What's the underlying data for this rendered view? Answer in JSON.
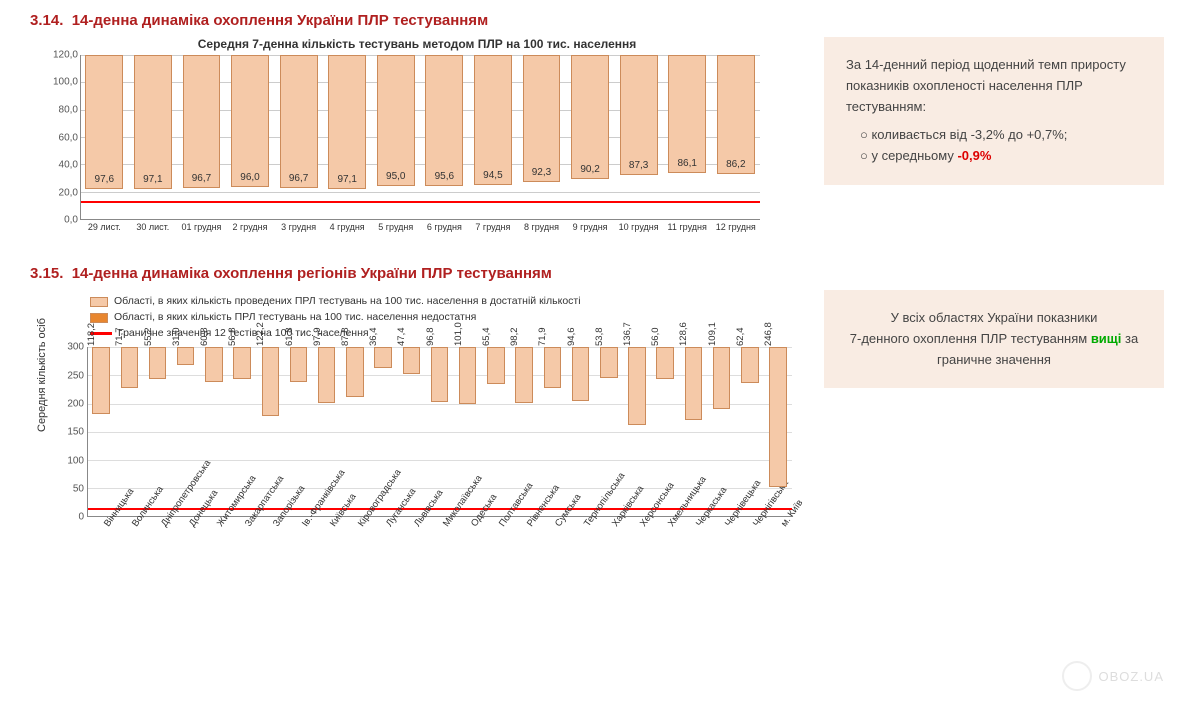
{
  "section1": {
    "number": "3.14.",
    "title": "14-денна динаміка охоплення України ПЛР тестуванням",
    "chart_title": "Середня 7-денна кількість тестувань методом ПЛР на 100 тис. населення",
    "chart": {
      "type": "bar",
      "categories": [
        "29 лист.",
        "30 лист.",
        "01 грудня",
        "2 грудня",
        "3 грудня",
        "4 грудня",
        "5 грудня",
        "6 грудня",
        "7 грудня",
        "8 грудня",
        "9 грудня",
        "10 грудня",
        "11 грудня",
        "12 грудня"
      ],
      "values": [
        97.6,
        97.1,
        96.7,
        96.0,
        96.7,
        97.1,
        95.0,
        95.6,
        94.5,
        92.3,
        90.2,
        87.3,
        86.1,
        86.2
      ],
      "value_labels": [
        "97,6",
        "97,1",
        "96,7",
        "96,0",
        "96,7",
        "97,1",
        "95,0",
        "95,6",
        "94,5",
        "92,3",
        "90,2",
        "87,3",
        "86,1",
        "86,2"
      ],
      "bar_color": "#f5c9a8",
      "bar_border": "#cc8b5a",
      "ylim": [
        0,
        120
      ],
      "yticks": [
        0,
        20,
        40,
        60,
        80,
        100,
        120
      ],
      "ytick_labels": [
        "0,0",
        "20,0",
        "40,0",
        "60,0",
        "80,0",
        "100,0",
        "120,0"
      ],
      "threshold": 12,
      "threshold_color": "#ff0000",
      "grid_color": "#cccccc",
      "background": "#ffffff",
      "label_fontsize": 10
    },
    "info": {
      "lead": "За 14-денний період щоденний темп приросту показників охопленості населення ПЛР тестуванням:",
      "bullet1": "коливається від -3,2% до +0,7%;",
      "bullet2_prefix": "у середньому ",
      "bullet2_value": "-0,9%"
    }
  },
  "section2": {
    "number": "3.15.",
    "title": "14-денна динаміка охоплення регіонів України ПЛР тестуванням",
    "legend": {
      "item1": "Області, в яких кількість проведених ПРЛ тестувань на 100 тис. населення в достатній кількості",
      "item2": "Області, в яких кількість ПРЛ тестувань на 100 тис. населення недостатня",
      "item3": "Граничне значення 12 тестів на 100 тис. населення",
      "color1": "#f5c9a8",
      "color2": "#e8862f"
    },
    "chart": {
      "type": "bar",
      "y_axis_title": "Середня кількість осіб",
      "categories": [
        "Вінницька",
        "Волинська",
        "Дніпропетровська",
        "Донецька",
        "Житомирська",
        "Закарпатська",
        "Запорізька",
        "Ів.-Франківська",
        "Київська",
        "Кіровоградська",
        "Луганська",
        "Львівська",
        "Миколаївська",
        "Одеська",
        "Полтавська",
        "Рівненська",
        "Сумська",
        "Тернопільська",
        "Харківська",
        "Херсонська",
        "Хмельницька",
        "Черкаська",
        "Чернівецька",
        "Чернігівська",
        "м. Київ"
      ],
      "values": [
        118.2,
        71.7,
        55.2,
        31.0,
        60.8,
        56.8,
        122.2,
        61.8,
        97.9,
        87.8,
        36.4,
        47.4,
        96.8,
        101.0,
        65.4,
        98.2,
        71.9,
        94.6,
        53.8,
        136.7,
        56.0,
        128.6,
        109.1,
        62.4,
        246.8
      ],
      "value_labels": [
        "118,2",
        "71,7",
        "55,2",
        "31,0",
        "60,8",
        "56,8",
        "122,2",
        "61,8",
        "97,9",
        "87,8",
        "36,4",
        "47,4",
        "96,8",
        "101,0",
        "65,4",
        "98,2",
        "71,9",
        "94,6",
        "53,8",
        "136,7",
        "56,0",
        "128,6",
        "109,1",
        "62,4",
        "246,8"
      ],
      "bar_color": "#f5c9a8",
      "bar_border": "#cc8b5a",
      "ylim": [
        0,
        300
      ],
      "yticks": [
        0,
        50,
        100,
        150,
        200,
        250,
        300
      ],
      "ytick_labels": [
        "0",
        "50",
        "100",
        "150",
        "200",
        "250",
        "300"
      ],
      "threshold": 12,
      "threshold_color": "#ff0000",
      "grid_color": "#dddddd",
      "background": "#ffffff"
    },
    "info": {
      "line1": "У всіх областях України показники",
      "line2_prefix": "7-денного охоплення ПЛР тестуванням ",
      "line2_em": "вищі",
      "line2_suffix": " за граничне значення"
    }
  },
  "watermark": "OBOZ.UA",
  "colors": {
    "title_color": "#b02020",
    "info_bg": "#f9ece3",
    "red": "#d00000",
    "green": "#00aa00"
  }
}
